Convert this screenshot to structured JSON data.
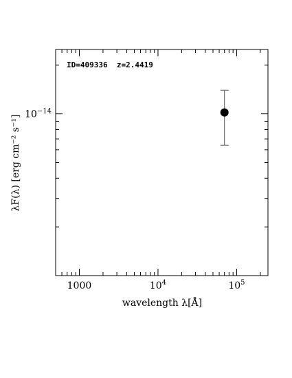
{
  "chart_data": {
    "type": "scatter",
    "xscale": "log",
    "yscale": "log",
    "xlim": [
      500,
      250000
    ],
    "ylim": [
      1e-15,
      2.5e-14
    ],
    "grid": false,
    "xlabel": "wavelength λ[Å]",
    "ylabel": "λF(λ) [erg cm⁻² s⁻¹]",
    "x_ticks": [
      {
        "value": 1000,
        "mant": "1000",
        "exp": ""
      },
      {
        "value": 10000,
        "mant": "10",
        "exp": "4"
      },
      {
        "value": 100000,
        "mant": "10",
        "exp": "5"
      }
    ],
    "y_ticks": [
      {
        "value": 1e-14,
        "mant": "10",
        "exp": "−14"
      }
    ],
    "annotation": "ID=409336  z=2.4419",
    "points": [
      {
        "x": 70000,
        "y": 1.02e-14,
        "y_err_low": 6.4e-15,
        "y_err_high": 1.4e-14
      }
    ]
  }
}
